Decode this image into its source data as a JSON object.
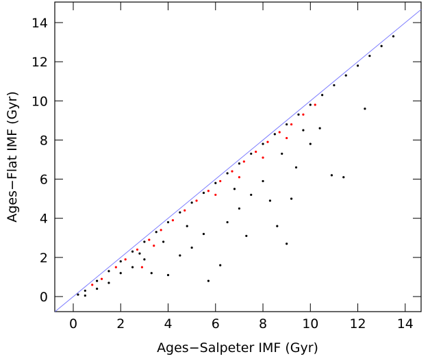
{
  "chart_data": {
    "type": "scatter",
    "xlabel": "Ages−Salpeter IMF (Gyr)",
    "ylabel": "Ages−Flat IMF (Gyr)",
    "xlim": [
      -0.78,
      14.67
    ],
    "ylim": [
      -0.77,
      15.05
    ],
    "xticks": [
      0,
      2,
      4,
      6,
      8,
      10,
      12,
      14
    ],
    "yticks": [
      0,
      2,
      4,
      6,
      8,
      10,
      12,
      14
    ],
    "identity_line": true,
    "identity_line_color": "#7b7bff",
    "series": [
      {
        "color": "#000000",
        "x": [
          0.2,
          0.5,
          1,
          1.5,
          2,
          2.5,
          3,
          3.5,
          4,
          4.5,
          5,
          5.5,
          6,
          6.5,
          7,
          7.5,
          8,
          8.5,
          9,
          9.5,
          10,
          10.5,
          11,
          11.5,
          12,
          12.5,
          13,
          13.5,
          0.5,
          1,
          1.5,
          2,
          2.5,
          3,
          3.3,
          4,
          4.5,
          5,
          5.5,
          5.7,
          6.2,
          6.5,
          7,
          7.5,
          8,
          8.3,
          8.6,
          9,
          9.2,
          9.4,
          10,
          10.4,
          10.9,
          11.4,
          12.3,
          7.3,
          6.8,
          4.8,
          3.8,
          2.8,
          9.7,
          8.8
        ],
        "y": [
          0.1,
          0.3,
          0.8,
          1.3,
          1.8,
          2.3,
          2.8,
          3.3,
          3.8,
          4.3,
          4.8,
          5.3,
          5.8,
          6.3,
          6.8,
          7.3,
          7.8,
          8.3,
          8.8,
          9.3,
          9.8,
          10.3,
          10.8,
          11.3,
          11.8,
          12.3,
          12.8,
          13.3,
          0.05,
          0.4,
          0.7,
          1.2,
          1.5,
          1.9,
          1.2,
          1.1,
          2.1,
          2.5,
          3.2,
          0.8,
          1.6,
          3.8,
          4.5,
          5.2,
          5.9,
          4.9,
          3.6,
          2.7,
          5,
          6.6,
          7.8,
          8.6,
          6.2,
          6.1,
          9.6,
          3.1,
          5.5,
          3.6,
          2.8,
          2.2,
          8.5,
          7.3
        ]
      },
      {
        "color": "#ff0000",
        "x": [
          0.8,
          1.2,
          1.8,
          2.2,
          2.7,
          3.2,
          3.7,
          4.2,
          4.7,
          5.2,
          5.7,
          6.2,
          6.7,
          7.2,
          7.7,
          8.2,
          8.7,
          9.2,
          9.7,
          10.2,
          2.9,
          3.4,
          6,
          7,
          8,
          9
        ],
        "y": [
          0.6,
          0.9,
          1.5,
          1.9,
          2.4,
          2.9,
          3.4,
          3.9,
          4.4,
          4.9,
          5.4,
          5.9,
          6.4,
          6.9,
          7.4,
          7.9,
          8.4,
          8.8,
          9.3,
          9.8,
          1.5,
          2.6,
          5.2,
          6.1,
          7.1,
          8.1
        ]
      }
    ]
  }
}
